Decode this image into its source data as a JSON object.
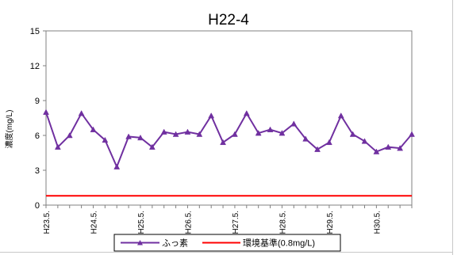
{
  "chart_data": {
    "type": "line",
    "title": "H22-4",
    "ylabel": "濃度(mg/L)",
    "xlabel": "",
    "ylim": [
      0,
      15
    ],
    "yticks": [
      0,
      3,
      6,
      9,
      12,
      15
    ],
    "grid": false,
    "legend_position": "bottom",
    "x_tick_labels": [
      "H23.5.",
      "H24.5.",
      "H25.5.",
      "H26.5.",
      "H27.5.",
      "H28.5.",
      "H29.5.",
      "H30.5."
    ],
    "series": [
      {
        "name": "ふっ素",
        "color": "#7030a0",
        "marker": "triangle",
        "values": [
          8.0,
          5.0,
          6.0,
          7.9,
          6.5,
          5.6,
          3.3,
          5.9,
          5.8,
          5.0,
          6.3,
          6.1,
          6.3,
          6.1,
          7.7,
          5.4,
          6.1,
          7.9,
          6.2,
          6.5,
          6.2,
          7.0,
          5.7,
          4.8,
          5.4,
          7.7,
          6.1,
          5.5,
          4.6,
          5.0,
          4.9,
          6.1
        ]
      },
      {
        "name": "環境基準(0.8mg/L)",
        "color": "#ff0000",
        "marker": "none",
        "constant": 0.8
      }
    ]
  }
}
